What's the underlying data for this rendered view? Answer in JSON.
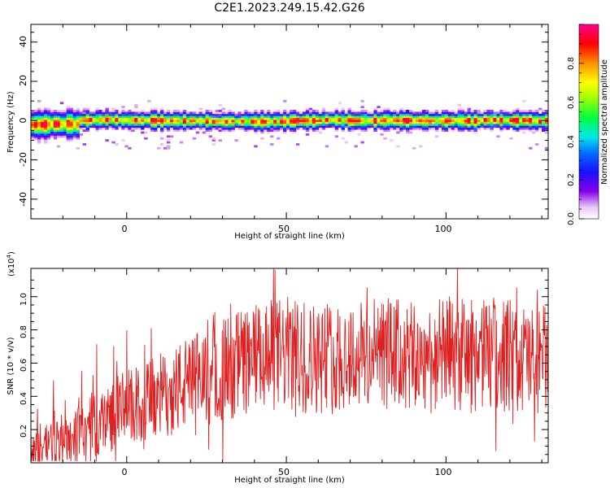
{
  "title": "C2E1.2023.249.15.42.G26",
  "colorbar": {
    "label": "Normalized spectral amplitude",
    "ticks": [
      "0.0",
      "0.2",
      "0.4",
      "0.6",
      "0.8"
    ],
    "range": [
      0,
      1
    ]
  },
  "chart_data": [
    {
      "type": "heatmap",
      "title": "",
      "xlabel": "Height of straight line (km)",
      "ylabel": "Frequency (Hz)",
      "xlim": [
        -30,
        132
      ],
      "ylim": [
        -50,
        49
      ],
      "x_ticks": [
        "0",
        "50",
        "100"
      ],
      "y_ticks": [
        "-40",
        "-20",
        "0",
        "20",
        "40"
      ],
      "description_values": {
        "center_frequency_hz": 0,
        "band_halfwidth_hz": 3,
        "peak_normalized_amplitude": 1.0
      }
    },
    {
      "type": "line",
      "title": "",
      "xlabel": "Height of straight line (km)",
      "ylabel": "SNR (10 * v/v)",
      "y_multiplier": "(x10^4)",
      "xlim": [
        -30,
        132
      ],
      "ylim": [
        0,
        1.17
      ],
      "x_ticks": [
        "0",
        "50",
        "100"
      ],
      "y_ticks": [
        "0.2",
        "0.4",
        "0.6",
        "0.8",
        "1.0"
      ],
      "color": "#e02020",
      "series": [
        {
          "x": [
            -30,
            -25,
            -20,
            -15,
            -10,
            -5,
            0,
            5,
            10,
            15,
            20,
            25,
            30,
            35,
            40,
            45,
            50,
            55,
            60,
            65,
            70,
            75,
            80,
            85,
            90,
            95,
            100,
            105,
            110,
            115,
            120,
            125,
            130,
            132
          ],
          "values": [
            0.06,
            0.12,
            0.14,
            0.18,
            0.22,
            0.28,
            0.33,
            0.35,
            0.4,
            0.44,
            0.48,
            0.52,
            0.56,
            0.6,
            0.62,
            0.64,
            0.66,
            0.62,
            0.64,
            0.63,
            0.65,
            0.64,
            0.66,
            0.65,
            0.62,
            0.63,
            0.66,
            0.65,
            0.64,
            0.66,
            0.65,
            0.62,
            0.63,
            0.6
          ]
        }
      ]
    }
  ]
}
